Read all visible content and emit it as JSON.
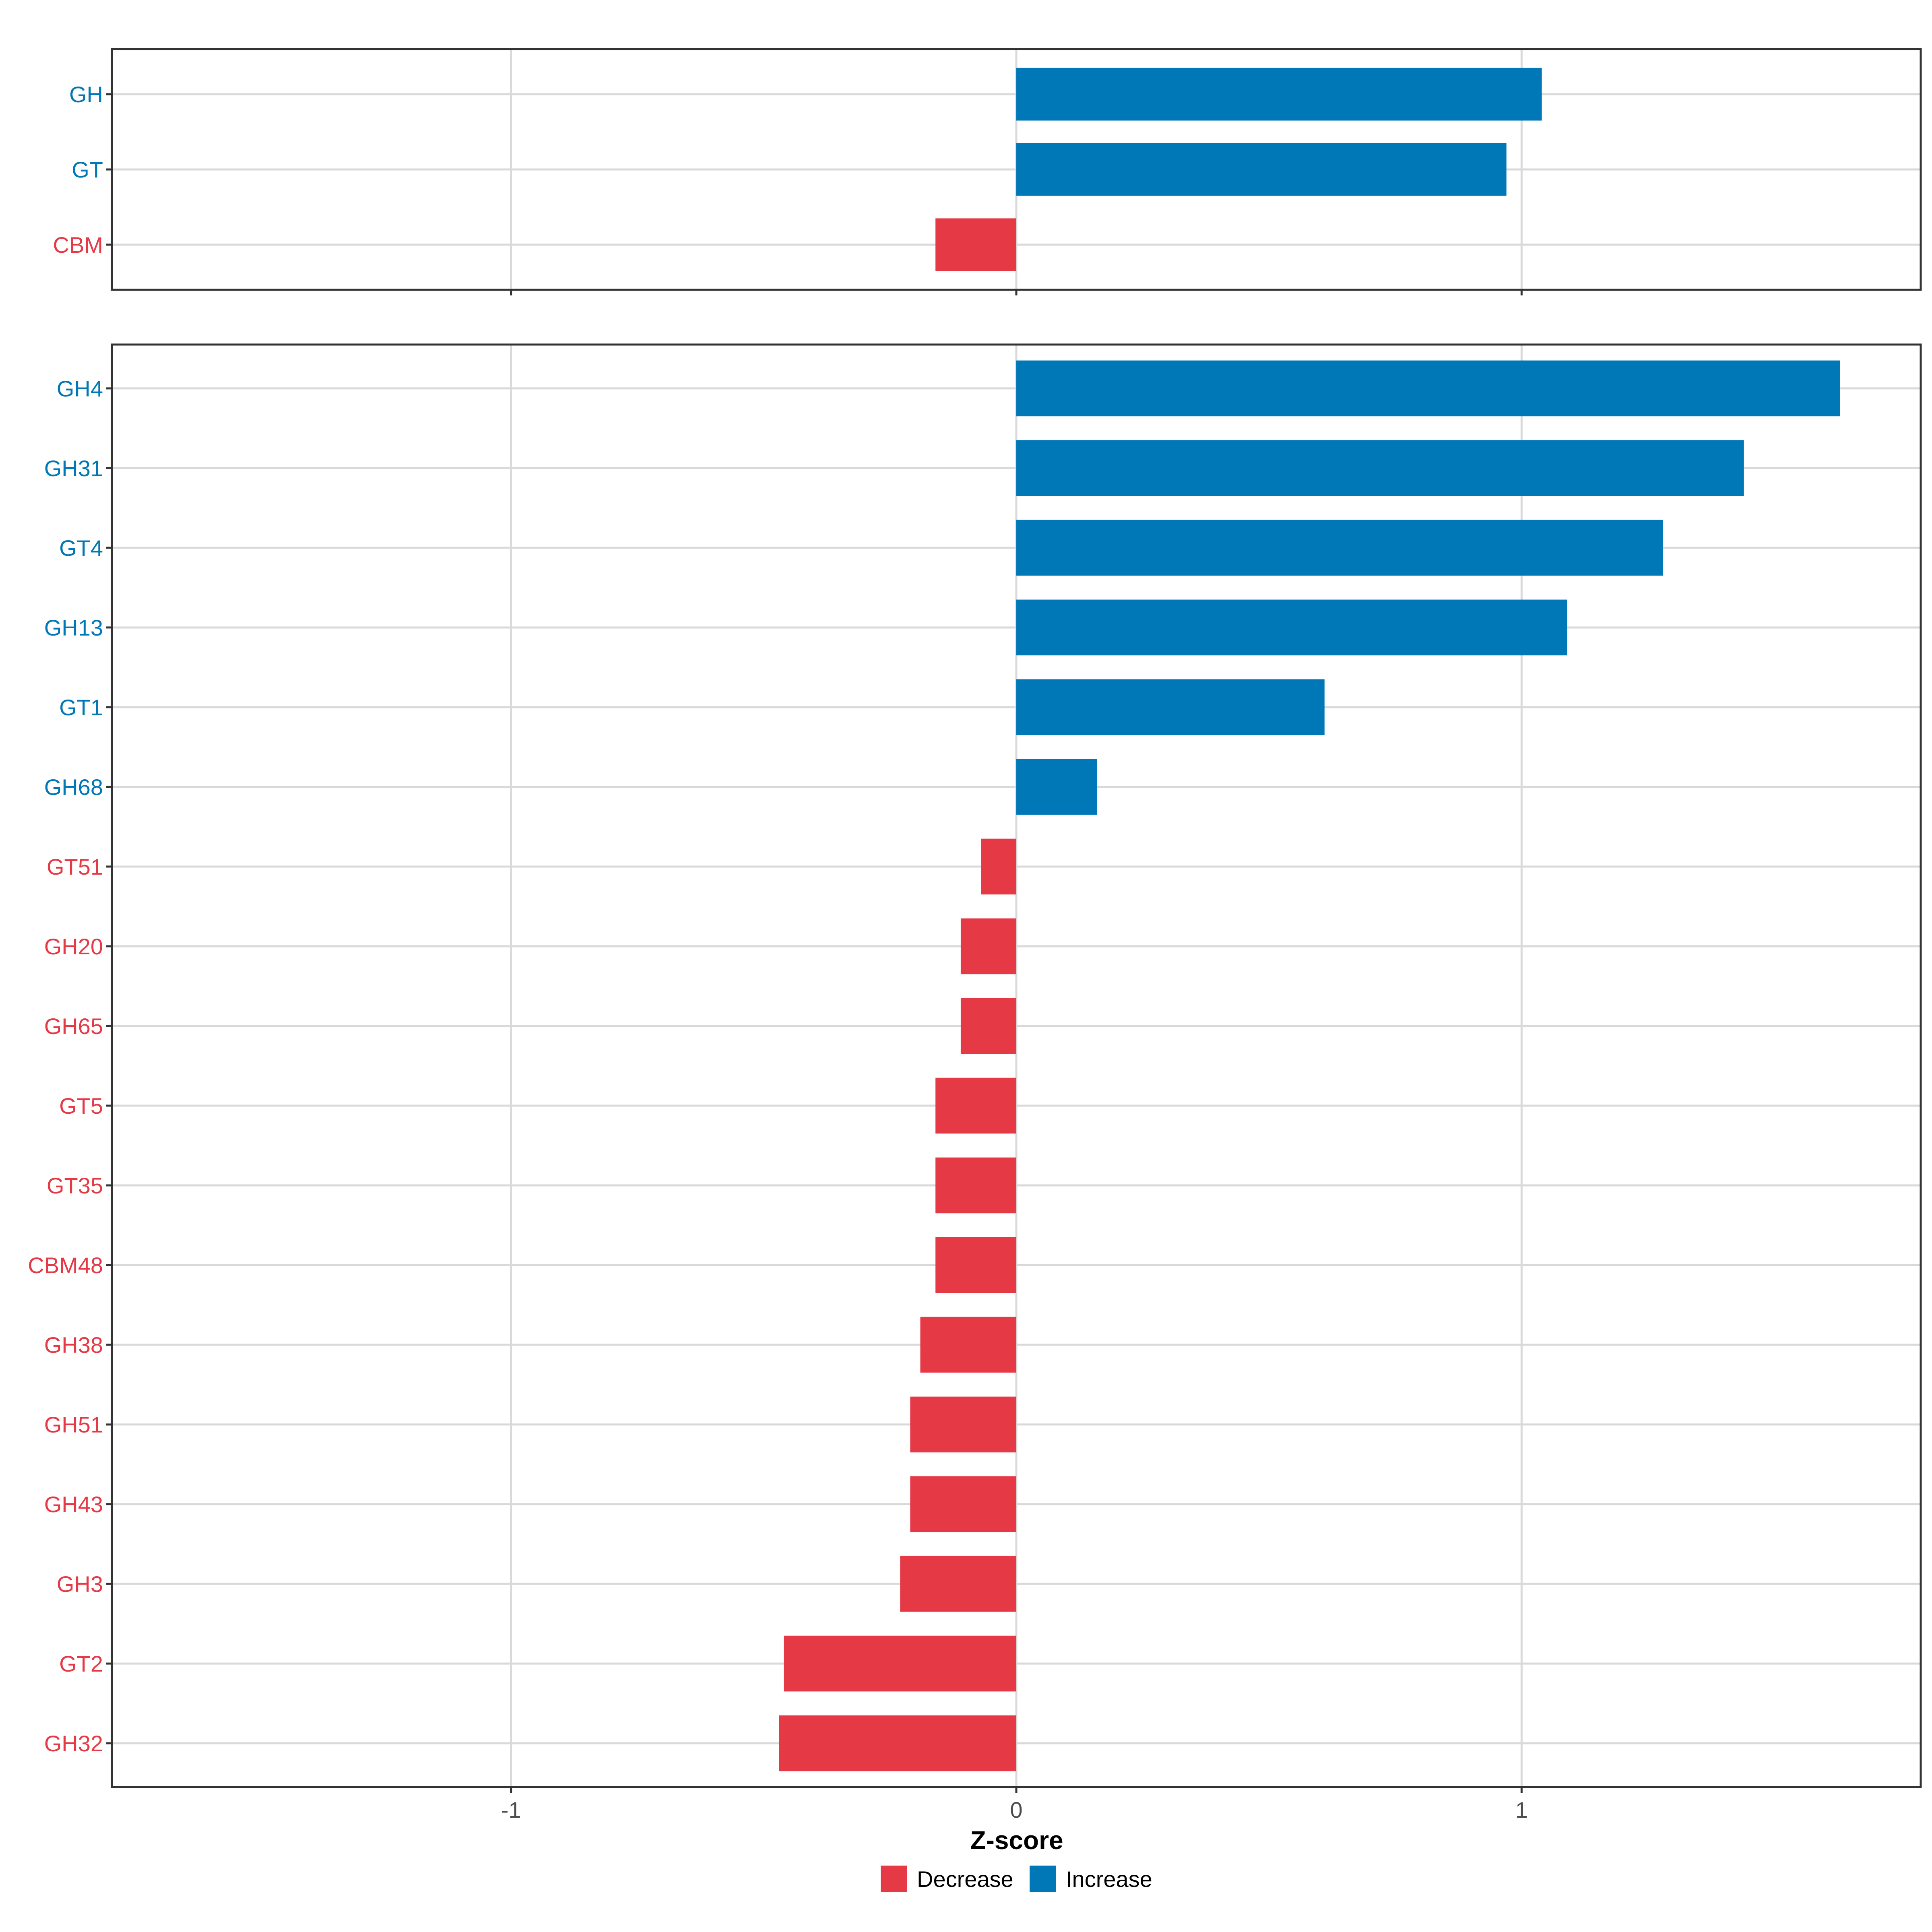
{
  "colors": {
    "decrease": "#E63946",
    "increase": "#0077B6",
    "grid": "#D9D9D9",
    "panel_border": "#333333",
    "text": "#4D4D4D",
    "title": "#000000"
  },
  "chart_data": {
    "type": "bar",
    "orientation": "horizontal",
    "xlabel": "Z-score",
    "xlim": [
      -1.79,
      1.79
    ],
    "xticks": [
      -1,
      0,
      1
    ],
    "xtick_labels": [
      "-1",
      "0",
      "1"
    ],
    "grid": true,
    "legend": {
      "placement": "bottom",
      "entries": [
        {
          "label": "Decrease",
          "color_key": "decrease"
        },
        {
          "label": "Increase",
          "color_key": "increase"
        }
      ]
    },
    "panels": [
      {
        "categories": [
          "GH",
          "GT",
          "CBM"
        ],
        "values": [
          1.04,
          0.97,
          -0.16
        ],
        "groups": [
          "Increase",
          "Increase",
          "Decrease"
        ]
      },
      {
        "categories": [
          "GH4",
          "GH31",
          "GT4",
          "GH13",
          "GT1",
          "GH68",
          "GT51",
          "GH20",
          "GH65",
          "GT5",
          "GT35",
          "CBM48",
          "GH38",
          "GH51",
          "GH43",
          "GH3",
          "GT2",
          "GH32"
        ],
        "values": [
          1.63,
          1.44,
          1.28,
          1.09,
          0.61,
          0.16,
          -0.07,
          -0.11,
          -0.11,
          -0.16,
          -0.16,
          -0.16,
          -0.19,
          -0.21,
          -0.21,
          -0.23,
          -0.46,
          -0.47
        ],
        "groups": [
          "Increase",
          "Increase",
          "Increase",
          "Increase",
          "Increase",
          "Increase",
          "Decrease",
          "Decrease",
          "Decrease",
          "Decrease",
          "Decrease",
          "Decrease",
          "Decrease",
          "Decrease",
          "Decrease",
          "Decrease",
          "Decrease",
          "Decrease"
        ]
      }
    ]
  }
}
